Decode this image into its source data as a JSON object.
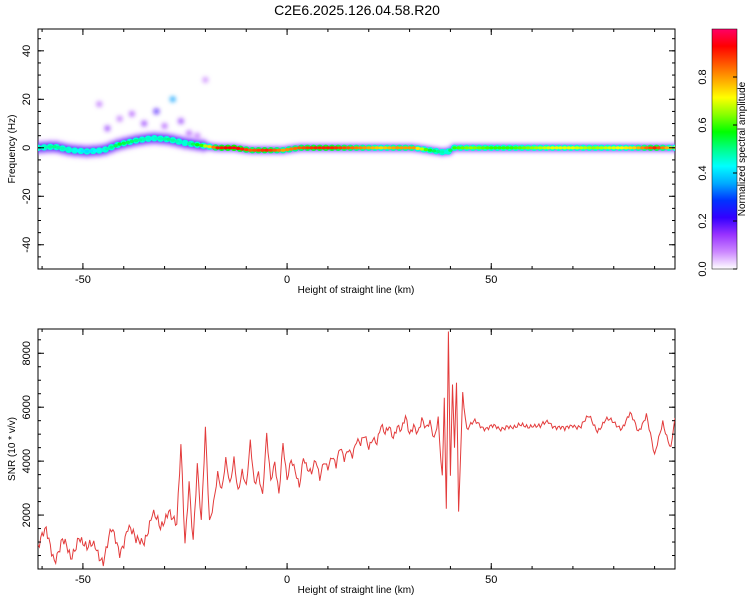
{
  "figure": {
    "title": "C2E6.2025.126.04.58.R20"
  },
  "chart_data": [
    {
      "type": "heatmap",
      "xlabel": "Height of straight line (km)",
      "ylabel": "Frequency (Hz)",
      "xlim": [
        -61,
        95
      ],
      "ylim": [
        -50,
        49
      ],
      "xticks": [
        -50,
        0,
        50
      ],
      "yticks": [
        -40,
        -20,
        0,
        20,
        40
      ],
      "colorbar": {
        "label": "Normalized spectral amplitude",
        "range": [
          0.0,
          1.0
        ],
        "ticks": [
          0.0,
          0.2,
          0.4,
          0.6,
          0.8
        ],
        "colormap": [
          "#ffffff",
          "#cc88ff",
          "#9933ff",
          "#3300ff",
          "#0033ff",
          "#00aaff",
          "#00ffff",
          "#00ff88",
          "#00ff00",
          "#88ff00",
          "#ffff00",
          "#ffaa00",
          "#ff5500",
          "#ff0000",
          "#ff0066"
        ]
      },
      "ridge": {
        "x": [
          -61,
          -57,
          -53,
          -49,
          -45,
          -41,
          -37,
          -33,
          -29,
          -25,
          -21,
          -17,
          -13,
          -9,
          -5,
          -1,
          3,
          7,
          11,
          15,
          19,
          23,
          27,
          31,
          35,
          37,
          39,
          41,
          45,
          50,
          55,
          60,
          65,
          70,
          75,
          80,
          85,
          90,
          95
        ],
        "y": [
          0,
          0.5,
          -1,
          -1.5,
          -1,
          1.5,
          3,
          4,
          3.5,
          2,
          1,
          0,
          0,
          -1,
          -1,
          -1,
          0,
          0,
          0,
          0,
          0,
          0,
          0,
          0,
          -1,
          -1.5,
          -2,
          0,
          0,
          0,
          0,
          0,
          0,
          0,
          0,
          0,
          0,
          0,
          0
        ],
        "amplitude": [
          0.45,
          0.5,
          0.45,
          0.4,
          0.45,
          0.55,
          0.5,
          0.45,
          0.5,
          0.45,
          0.6,
          0.9,
          0.95,
          0.85,
          0.9,
          0.8,
          0.85,
          0.9,
          0.9,
          0.85,
          0.8,
          0.75,
          0.8,
          0.8,
          0.55,
          0.5,
          0.45,
          0.6,
          0.65,
          0.6,
          0.6,
          0.65,
          0.7,
          0.7,
          0.65,
          0.7,
          0.75,
          0.9,
          0.7
        ]
      },
      "scatter_blobs": {
        "x": [
          -44,
          -41,
          -38,
          -35,
          -32,
          -28,
          -24,
          -20,
          -46,
          -30,
          -26,
          -22
        ],
        "y": [
          8,
          12,
          14,
          10,
          15,
          20,
          6,
          28,
          18,
          9,
          11,
          5
        ],
        "amplitude": [
          0.15,
          0.1,
          0.12,
          0.15,
          0.2,
          0.35,
          0.12,
          0.08,
          0.1,
          0.12,
          0.15,
          0.1
        ]
      }
    },
    {
      "type": "line",
      "xlabel": "Height of straight line (km)",
      "ylabel": "SNR (10 * v/v)",
      "xlim": [
        -61,
        95
      ],
      "ylim": [
        0,
        8900
      ],
      "xticks": [
        -50,
        0,
        50
      ],
      "yticks": [
        2000,
        4000,
        6000,
        8000
      ],
      "series": [
        {
          "color": "#e33b3b",
          "x": [
            -61,
            -59,
            -57,
            -55,
            -53,
            -51,
            -49,
            -47,
            -45,
            -43,
            -41,
            -39,
            -37,
            -35,
            -33,
            -31,
            -29,
            -27,
            -26,
            -25,
            -24,
            -23,
            -22,
            -21,
            -20,
            -19,
            -18,
            -17,
            -16,
            -15,
            -14,
            -13,
            -12,
            -11,
            -10,
            -9,
            -8,
            -7,
            -6,
            -5,
            -4,
            -3,
            -2,
            -1,
            0,
            1,
            2,
            3,
            4,
            5,
            6,
            7,
            8,
            9,
            10,
            11,
            12,
            13,
            14,
            15,
            16,
            17,
            18,
            19,
            20,
            21,
            22,
            23,
            24,
            25,
            26,
            27,
            28,
            29,
            30,
            31,
            32,
            33,
            34,
            35,
            36,
            37,
            38,
            38.5,
            39,
            39.5,
            40,
            40.5,
            41,
            41.5,
            42,
            43,
            44,
            46,
            48,
            50,
            52,
            54,
            56,
            58,
            60,
            62,
            64,
            66,
            68,
            70,
            72,
            74,
            76,
            78,
            80,
            82,
            84,
            86,
            88,
            90,
            92,
            94,
            95
          ],
          "y": [
            800,
            1300,
            500,
            1000,
            300,
            1400,
            600,
            900,
            400,
            1300,
            700,
            1600,
            900,
            1200,
            2000,
            1400,
            2400,
            1500,
            4400,
            900,
            3400,
            1200,
            3800,
            1500,
            5100,
            1800,
            2600,
            3600,
            2800,
            3900,
            3100,
            4200,
            3000,
            3600,
            2900,
            4600,
            3200,
            3700,
            2800,
            4900,
            3100,
            3900,
            2900,
            4800,
            3300,
            3900,
            3500,
            3100,
            4300,
            3800,
            3500,
            3900,
            3300,
            4100,
            3900,
            4200,
            3700,
            4400,
            4100,
            4600,
            4300,
            4700,
            4500,
            4900,
            4600,
            5000,
            4700,
            5200,
            4900,
            5300,
            5000,
            5400,
            5100,
            5500,
            4900,
            5400,
            5200,
            5600,
            5100,
            5300,
            4800,
            5700,
            3500,
            6500,
            2100,
            8800,
            3200,
            6800,
            4300,
            7000,
            2100,
            6600,
            5200,
            5400,
            5300,
            5300,
            5100,
            5400,
            5200,
            5300,
            5400,
            5200,
            5500,
            5300,
            5100,
            5400,
            5300,
            5600,
            5200,
            5500,
            5400,
            5300,
            5700,
            5100,
            5800,
            4100,
            5500,
            4500,
            5600
          ]
        }
      ]
    }
  ]
}
